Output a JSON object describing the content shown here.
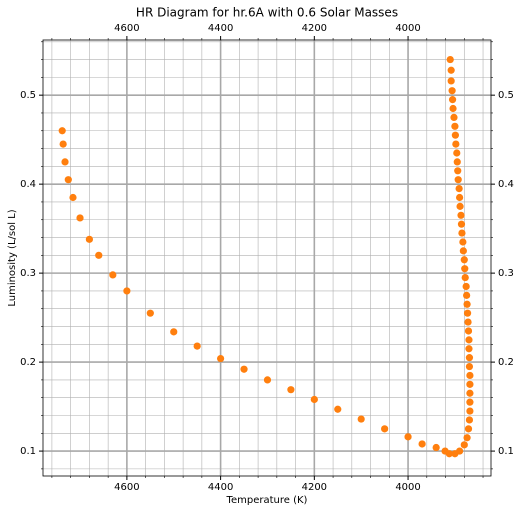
{
  "chart_data": {
    "type": "scatter",
    "title": "HR Diagram for hr.6A with 0.6 Solar Masses",
    "x_label": "Temperature (K)",
    "y_label": "Luminosity (L/sol L)",
    "color": "#ff7f0e",
    "grid": true,
    "x_inverted": true,
    "xlim": [
      4779,
      3823
    ],
    "ylim": [
      0.072,
      0.562
    ],
    "xticks": [
      4600,
      4400,
      4200,
      4000
    ],
    "yticks": [
      0.1,
      0.2,
      0.3,
      0.4,
      0.5
    ],
    "xminorticks": [
      4760,
      4720,
      4680,
      4640,
      4560,
      4520,
      4480,
      4440,
      4360,
      4320,
      4280,
      4240,
      4160,
      4120,
      4080,
      4040,
      3960,
      3920,
      3880,
      3840
    ],
    "yminorticks": [
      0.08,
      0.12,
      0.14,
      0.16,
      0.18,
      0.22,
      0.24,
      0.26,
      0.28,
      0.32,
      0.34,
      0.36,
      0.38,
      0.42,
      0.44,
      0.46,
      0.48,
      0.52,
      0.54,
      0.56
    ],
    "x": [
      3910,
      3908,
      3908,
      3906,
      3905,
      3904,
      3902,
      3900,
      3899,
      3898,
      3896,
      3895,
      3894,
      3893,
      3891,
      3890,
      3889,
      3887,
      3886,
      3885,
      3883,
      3882,
      3880,
      3879,
      3878,
      3876,
      3875,
      3874,
      3873,
      3872,
      3871,
      3870,
      3870,
      3869,
      3869,
      3868,
      3868,
      3868,
      3868,
      3868,
      3869,
      3871,
      3874,
      3880,
      3890,
      3900,
      3912,
      3921,
      3940,
      3970,
      4000,
      4050,
      4100,
      4150,
      4200,
      4250,
      4300,
      4350,
      4400,
      4450,
      4500,
      4550,
      4600,
      4630,
      4660,
      4680,
      4700,
      4715,
      4725,
      4732,
      4736,
      4738
    ],
    "y": [
      0.54,
      0.528,
      0.516,
      0.505,
      0.495,
      0.485,
      0.475,
      0.465,
      0.455,
      0.445,
      0.435,
      0.425,
      0.415,
      0.405,
      0.395,
      0.385,
      0.375,
      0.365,
      0.355,
      0.345,
      0.335,
      0.325,
      0.315,
      0.305,
      0.295,
      0.285,
      0.275,
      0.265,
      0.255,
      0.245,
      0.235,
      0.225,
      0.215,
      0.205,
      0.195,
      0.185,
      0.175,
      0.165,
      0.155,
      0.145,
      0.135,
      0.125,
      0.115,
      0.107,
      0.1,
      0.097,
      0.097,
      0.1,
      0.104,
      0.108,
      0.116,
      0.125,
      0.136,
      0.147,
      0.158,
      0.169,
      0.18,
      0.192,
      0.204,
      0.218,
      0.234,
      0.255,
      0.28,
      0.298,
      0.32,
      0.338,
      0.362,
      0.385,
      0.405,
      0.425,
      0.445,
      0.46
    ]
  }
}
